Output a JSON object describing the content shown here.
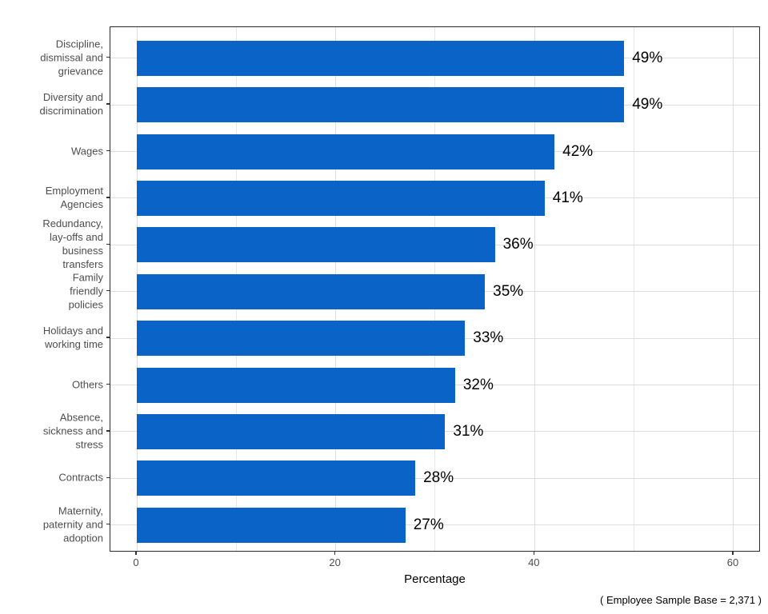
{
  "chart_data": {
    "type": "bar",
    "orientation": "horizontal",
    "title": "",
    "xlabel": "Percentage",
    "ylabel": "",
    "xlim": [
      0,
      60
    ],
    "x_tick_values": [
      0,
      20,
      40,
      60
    ],
    "x_tick_labels": [
      "0",
      "20",
      "40",
      "60"
    ],
    "grid_values": [
      0,
      10,
      20,
      30,
      40,
      50,
      60
    ],
    "grid": "on",
    "legend": "none",
    "categories": [
      "Discipline, dismissal and grievance",
      "Diversity and discrimination",
      "Wages",
      "Employment Agencies",
      "Redundancy, lay-offs and business transfers",
      "Family friendly policies",
      "Holidays and working time",
      "Others",
      "Absence, sickness and stress",
      "Contracts",
      "Maternity, paternity and adoption"
    ],
    "category_label_lines": [
      [
        "Discipline,",
        "dismissal and",
        "grievance"
      ],
      [
        "Diversity and",
        "discrimination"
      ],
      [
        "Wages"
      ],
      [
        "Employment",
        "Agencies"
      ],
      [
        "Redundancy,",
        "lay-offs and",
        "business",
        "transfers"
      ],
      [
        "Family",
        "friendly",
        "policies"
      ],
      [
        "Holidays and",
        "working time"
      ],
      [
        "Others"
      ],
      [
        "Absence,",
        "sickness and",
        "stress"
      ],
      [
        "Contracts"
      ],
      [
        "Maternity,",
        "paternity and",
        "adoption"
      ]
    ],
    "values": [
      49,
      49,
      42,
      41,
      36,
      35,
      33,
      32,
      31,
      28,
      27
    ],
    "value_labels": [
      "49%",
      "49%",
      "42%",
      "41%",
      "36%",
      "35%",
      "33%",
      "32%",
      "31%",
      "28%",
      "27%"
    ]
  },
  "footer": {
    "text": "( Employee Sample Base =  2,371 )"
  },
  "colors": {
    "bar": "#0a64c8",
    "grid_major": "#dedede",
    "grid_minor": "#e7e7e7",
    "axis_text": "#4d4d4d",
    "tick_mark": "#333333",
    "panel_border": "#2b2b2b",
    "value_label": "#000000"
  }
}
